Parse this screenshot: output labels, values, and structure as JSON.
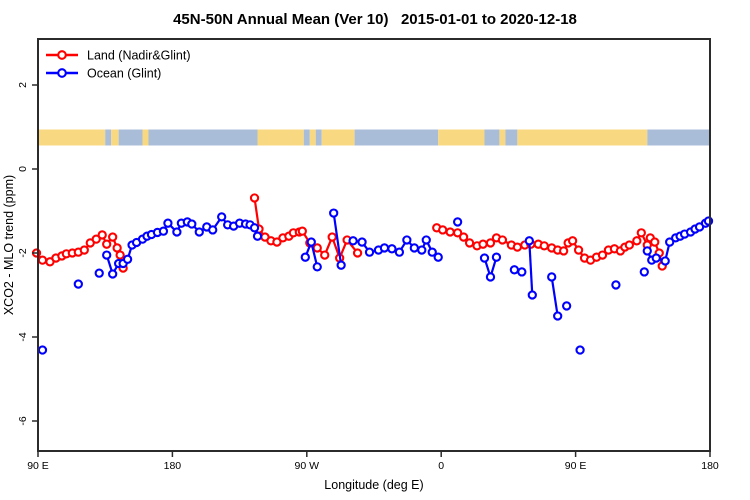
{
  "title": "45N-50N Annual Mean (Ver 10)   2015-01-01 to 2020-12-18",
  "axes": {
    "x_label": "Longitude (deg E)",
    "y_label": "XCO2 - MLO trend (ppm)"
  },
  "legend": [
    {
      "label": "Land (Nadir&Glint)",
      "color": "#ff0000"
    },
    {
      "label": "Ocean (Glint)",
      "color": "#0000ff"
    }
  ],
  "map_strip": {
    "land_color": "#f8d880",
    "ocean_color": "#a9bdd9",
    "segments": [
      [
        90,
        135,
        "land"
      ],
      [
        135,
        139,
        "ocean"
      ],
      [
        139,
        144,
        "land"
      ],
      [
        144,
        160,
        "ocean"
      ],
      [
        160,
        164,
        "land"
      ],
      [
        164,
        237,
        "ocean"
      ],
      [
        237,
        268,
        "land"
      ],
      [
        268,
        272,
        "ocean"
      ],
      [
        272,
        276,
        "land"
      ],
      [
        276,
        280,
        "ocean"
      ],
      [
        280,
        302,
        "land"
      ],
      [
        302,
        358,
        "ocean"
      ],
      [
        358,
        389,
        "land"
      ],
      [
        389,
        399,
        "ocean"
      ],
      [
        399,
        403,
        "land"
      ],
      [
        403,
        411,
        "ocean"
      ],
      [
        411,
        498,
        "land"
      ],
      [
        498,
        540,
        "ocean"
      ]
    ]
  },
  "chart_data": {
    "type": "line",
    "title": "45N-50N Annual Mean (Ver 10)   2015-01-01 to 2020-12-18",
    "xlabel": "Longitude (deg E)",
    "ylabel": "XCO2 - MLO trend (ppm)",
    "x_range": [
      90,
      540
    ],
    "ylim": [
      -7.3,
      3.2
    ],
    "x_tick_values": [
      90,
      180,
      270,
      360,
      450,
      540
    ],
    "x_tick_labels": [
      "90 E",
      "180",
      "90 W",
      "0",
      "90 E",
      "180"
    ],
    "y_tick_values": [
      2,
      0,
      -2,
      -4,
      -6
    ],
    "y_tick_labels": [
      "2",
      "0",
      "-2",
      "-4",
      "-6"
    ],
    "series": [
      {
        "name": "Land (Nadir&Glint)",
        "color": "#ff0000",
        "chains": [
          [
            [
              89,
              -2.0
            ],
            [
              93,
              -2.17
            ],
            [
              98,
              -2.21
            ],
            [
              102,
              -2.12
            ],
            [
              106,
              -2.07
            ],
            [
              109,
              -2.02
            ],
            [
              113,
              -2.0
            ],
            [
              117,
              -1.98
            ],
            [
              121,
              -1.93
            ],
            [
              125,
              -1.76
            ],
            [
              129,
              -1.67
            ],
            [
              133,
              -1.57
            ],
            [
              136,
              -1.79
            ],
            [
              140,
              -1.62
            ],
            [
              143,
              -1.88
            ],
            [
              145,
              -2.05
            ],
            [
              147,
              -2.36
            ]
          ],
          [
            [
              235,
              -0.69
            ],
            [
              238,
              -1.43
            ],
            [
              242,
              -1.62
            ],
            [
              246,
              -1.71
            ],
            [
              250,
              -1.74
            ],
            [
              254,
              -1.64
            ],
            [
              258,
              -1.6
            ],
            [
              261,
              -1.52
            ],
            [
              265,
              -1.5
            ],
            [
              267,
              -1.48
            ],
            [
              272,
              -1.76
            ],
            [
              277,
              -1.88
            ],
            [
              282,
              -2.05
            ],
            [
              287,
              -1.62
            ],
            [
              292,
              -2.12
            ],
            [
              297,
              -1.69
            ],
            [
              304,
              -2.0
            ]
          ],
          [
            [
              357,
              -1.4
            ],
            [
              361,
              -1.45
            ],
            [
              366,
              -1.5
            ],
            [
              371,
              -1.52
            ],
            [
              375,
              -1.62
            ],
            [
              379,
              -1.76
            ],
            [
              384,
              -1.83
            ],
            [
              388,
              -1.79
            ],
            [
              393,
              -1.76
            ],
            [
              397,
              -1.64
            ],
            [
              401,
              -1.69
            ],
            [
              407,
              -1.81
            ],
            [
              411,
              -1.86
            ],
            [
              416,
              -1.81
            ],
            [
              420,
              -1.79
            ],
            [
              425,
              -1.79
            ],
            [
              429,
              -1.83
            ],
            [
              434,
              -1.88
            ],
            [
              438,
              -1.93
            ],
            [
              442,
              -1.95
            ],
            [
              445,
              -1.76
            ],
            [
              448,
              -1.71
            ],
            [
              452,
              -1.93
            ],
            [
              456,
              -2.12
            ],
            [
              460,
              -2.17
            ],
            [
              464,
              -2.1
            ],
            [
              468,
              -2.05
            ],
            [
              472,
              -1.93
            ],
            [
              476,
              -1.9
            ],
            [
              480,
              -1.95
            ],
            [
              483,
              -1.86
            ],
            [
              486,
              -1.81
            ],
            [
              491,
              -1.71
            ],
            [
              494,
              -1.52
            ],
            [
              498,
              -1.81
            ],
            [
              500,
              -1.64
            ],
            [
              503,
              -1.74
            ],
            [
              506,
              -2.0
            ],
            [
              508,
              -2.31
            ]
          ]
        ]
      },
      {
        "name": "Ocean (Glint)",
        "color": "#0000ff",
        "chains": [
          [
            [
              93,
              -4.31
            ]
          ],
          [
            [
              117,
              -2.74
            ]
          ],
          [
            [
              131,
              -2.48
            ]
          ],
          [
            [
              136,
              -2.05
            ],
            [
              140,
              -2.5
            ],
            [
              144,
              -2.25
            ],
            [
              147,
              -2.25
            ],
            [
              150,
              -2.15
            ],
            [
              153,
              -1.81
            ],
            [
              156,
              -1.75
            ],
            [
              160,
              -1.67
            ],
            [
              163,
              -1.6
            ],
            [
              166,
              -1.56
            ],
            [
              170,
              -1.51
            ],
            [
              174,
              -1.48
            ],
            [
              177,
              -1.29
            ],
            [
              183,
              -1.5
            ],
            [
              186,
              -1.29
            ],
            [
              190,
              -1.26
            ],
            [
              193,
              -1.31
            ],
            [
              198,
              -1.5
            ],
            [
              203,
              -1.38
            ],
            [
              207,
              -1.45
            ],
            [
              213,
              -1.14
            ],
            [
              217,
              -1.33
            ],
            [
              221,
              -1.36
            ],
            [
              225,
              -1.29
            ],
            [
              229,
              -1.31
            ],
            [
              232,
              -1.33
            ],
            [
              235,
              -1.4
            ],
            [
              237,
              -1.6
            ]
          ],
          [
            [
              269,
              -2.1
            ],
            [
              273,
              -1.74
            ],
            [
              277,
              -2.33
            ]
          ],
          [
            [
              288,
              -1.05
            ],
            [
              293,
              -2.29
            ]
          ],
          [
            [
              301,
              -1.71
            ],
            [
              307,
              -1.74
            ],
            [
              312,
              -1.98
            ],
            [
              318,
              -1.93
            ],
            [
              322,
              -1.88
            ],
            [
              327,
              -1.9
            ],
            [
              332,
              -1.98
            ],
            [
              337,
              -1.69
            ],
            [
              342,
              -1.88
            ],
            [
              347,
              -1.93
            ],
            [
              350,
              -1.69
            ],
            [
              354,
              -1.98
            ],
            [
              358,
              -2.1
            ]
          ],
          [
            [
              371,
              -1.26
            ]
          ],
          [
            [
              389,
              -2.12
            ],
            [
              393,
              -2.57
            ],
            [
              397,
              -2.1
            ]
          ],
          [
            [
              409,
              -2.4
            ],
            [
              414,
              -2.45
            ]
          ],
          [
            [
              419,
              -1.71
            ],
            [
              421,
              -3.0
            ]
          ],
          [
            [
              434,
              -2.57
            ],
            [
              438,
              -3.5
            ]
          ],
          [
            [
              444,
              -3.26
            ]
          ],
          [
            [
              453,
              -4.31
            ]
          ],
          [
            [
              477,
              -2.76
            ]
          ],
          [
            [
              496,
              -2.45
            ]
          ],
          [
            [
              498,
              -1.95
            ],
            [
              501,
              -2.17
            ],
            [
              504,
              -2.12
            ],
            [
              510,
              -2.19
            ],
            [
              513,
              -1.74
            ],
            [
              517,
              -1.64
            ],
            [
              520,
              -1.6
            ],
            [
              523,
              -1.55
            ],
            [
              527,
              -1.5
            ],
            [
              530,
              -1.43
            ],
            [
              533,
              -1.38
            ],
            [
              537,
              -1.29
            ],
            [
              539,
              -1.24
            ]
          ]
        ]
      }
    ],
    "legend_position": "top-left",
    "grid": false
  }
}
